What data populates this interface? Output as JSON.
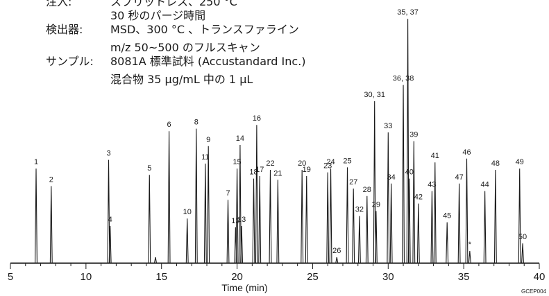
{
  "conditions": [
    {
      "label": "注入:",
      "lines": [
        "スプリットレス、250 °C",
        "30 秒のパージ時間"
      ]
    },
    {
      "label": "検出器:",
      "lines": [
        "MSD、300 °C 、トランスファライン",
        "m/z 50~500 のフルスキャン"
      ]
    },
    {
      "label": "サンプル:",
      "lines": [
        "8081A 標準試料 (Accustandard Inc.)",
        "混合物 35 μg/mL 中の 1 μL"
      ]
    }
  ],
  "code": "GCEP004",
  "chart_data": {
    "type": "line",
    "xlabel": "Time (min)",
    "ylabel": "",
    "xlim": [
      5,
      40
    ],
    "ylim": [
      0,
      100
    ],
    "x_ticks": [
      5,
      10,
      15,
      20,
      25,
      30,
      35,
      40
    ],
    "grid": false,
    "peaks": [
      {
        "label": "1",
        "x": 6.7,
        "y": 38.0
      },
      {
        "label": "2",
        "x": 7.7,
        "y": 31.0
      },
      {
        "label": "3",
        "x": 11.5,
        "y": 41.5
      },
      {
        "label": "4",
        "x": 11.6,
        "y": 15.0
      },
      {
        "label": "5",
        "x": 14.2,
        "y": 35.5
      },
      {
        "label": "",
        "x": 14.6,
        "y": 2.5
      },
      {
        "label": "6",
        "x": 15.5,
        "y": 53.0
      },
      {
        "label": "10",
        "x": 16.7,
        "y": 18.0
      },
      {
        "label": "8",
        "x": 17.3,
        "y": 54.0
      },
      {
        "label": "11",
        "x": 17.9,
        "y": 40.0
      },
      {
        "label": "9",
        "x": 18.1,
        "y": 47.0
      },
      {
        "label": "7",
        "x": 19.4,
        "y": 25.5
      },
      {
        "label": "12",
        "x": 19.9,
        "y": 14.5
      },
      {
        "label": "15",
        "x": 20.0,
        "y": 38.0
      },
      {
        "label": "14",
        "x": 20.2,
        "y": 47.5
      },
      {
        "label": "13",
        "x": 20.3,
        "y": 15.0
      },
      {
        "label": "18",
        "x": 21.1,
        "y": 34.0
      },
      {
        "label": "16",
        "x": 21.3,
        "y": 55.5
      },
      {
        "label": "17",
        "x": 21.5,
        "y": 35.0
      },
      {
        "label": "22",
        "x": 22.2,
        "y": 37.5
      },
      {
        "label": "21",
        "x": 22.7,
        "y": 33.5
      },
      {
        "label": "20",
        "x": 24.3,
        "y": 37.5
      },
      {
        "label": "19",
        "x": 24.6,
        "y": 35.0
      },
      {
        "label": "23",
        "x": 26.0,
        "y": 36.5
      },
      {
        "label": "24",
        "x": 26.2,
        "y": 38.0
      },
      {
        "label": "26",
        "x": 26.6,
        "y": 2.5
      },
      {
        "label": "25",
        "x": 27.3,
        "y": 38.5
      },
      {
        "label": "27",
        "x": 27.7,
        "y": 30.0
      },
      {
        "label": "32",
        "x": 28.1,
        "y": 19.0
      },
      {
        "label": "28",
        "x": 28.6,
        "y": 27.0
      },
      {
        "label": "29",
        "x": 29.2,
        "y": 21.0
      },
      {
        "label": "30, 31",
        "x": 29.1,
        "y": 65.0
      },
      {
        "label": "33",
        "x": 30.0,
        "y": 52.5
      },
      {
        "label": "34",
        "x": 30.2,
        "y": 32.0
      },
      {
        "label": "36, 38",
        "x": 31.0,
        "y": 71.5
      },
      {
        "label": "35, 37",
        "x": 31.3,
        "y": 98.0
      },
      {
        "label": "40",
        "x": 31.4,
        "y": 34.0
      },
      {
        "label": "39",
        "x": 31.7,
        "y": 49.0
      },
      {
        "label": "42",
        "x": 32.0,
        "y": 24.0
      },
      {
        "label": "43",
        "x": 32.9,
        "y": 29.0
      },
      {
        "label": "41",
        "x": 33.1,
        "y": 40.5
      },
      {
        "label": "45",
        "x": 33.9,
        "y": 16.5
      },
      {
        "label": "47",
        "x": 34.7,
        "y": 32.0
      },
      {
        "label": "46",
        "x": 35.2,
        "y": 42.0
      },
      {
        "label": "*",
        "x": 35.4,
        "y": 5.0
      },
      {
        "label": "44",
        "x": 36.4,
        "y": 29.0
      },
      {
        "label": "48",
        "x": 37.1,
        "y": 37.5
      },
      {
        "label": "49",
        "x": 38.7,
        "y": 38.0
      },
      {
        "label": "50",
        "x": 38.9,
        "y": 8.0
      }
    ]
  }
}
